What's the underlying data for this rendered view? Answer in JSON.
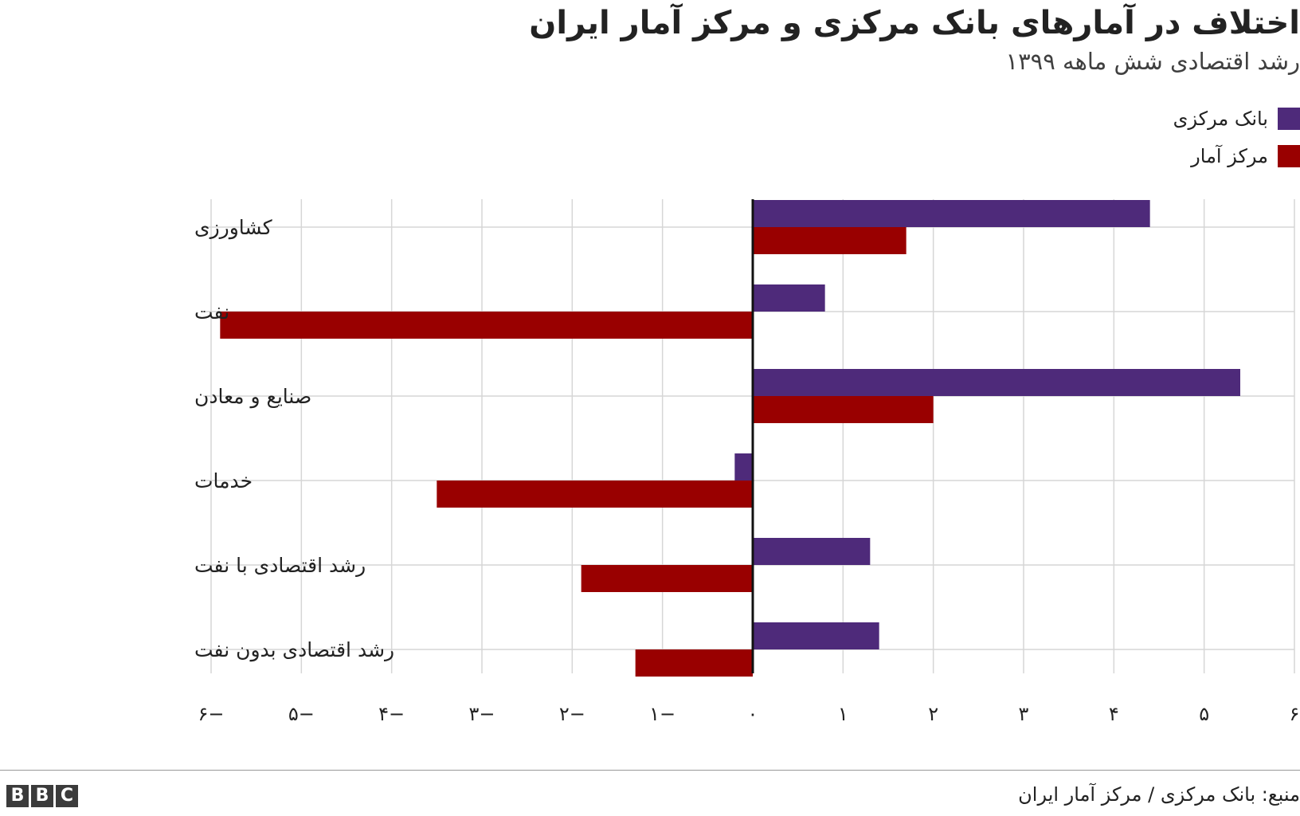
{
  "chart_data": {
    "type": "bar",
    "orientation": "horizontal",
    "title": "اختلاف در آمارهای بانک مرکزی و مرکز آمار ایران",
    "subtitle": "رشد اقتصادی شش ماهه ۱۳۹۹",
    "categories": [
      "کشاورزی",
      "نفت",
      "صنایع و معادن",
      "خدمات",
      "رشد اقتصادی با نفت",
      "رشد اقتصادی بدون نفت"
    ],
    "series": [
      {
        "name": "بانک مرکزی",
        "color": "#4e2a7a",
        "values": [
          4.4,
          0.8,
          5.4,
          -0.2,
          1.3,
          1.4
        ]
      },
      {
        "name": "مرکز آمار",
        "color": "#990000",
        "values": [
          1.7,
          -5.9,
          2.0,
          -3.5,
          -1.9,
          -1.3
        ]
      }
    ],
    "xlim": [
      -6,
      6
    ],
    "ticks": [
      -6,
      -5,
      -4,
      -3,
      -2,
      -1,
      0,
      1,
      2,
      3,
      4,
      5,
      6
    ],
    "tick_labels": [
      "۶−",
      "۵−",
      "۴−",
      "۳−",
      "۲−",
      "۱−",
      "۰",
      "۱",
      "۲",
      "۳",
      "۴",
      "۵",
      "۶"
    ],
    "grid": true,
    "legend_position": "top-right",
    "source": "منبع: بانک مرکزی / مرکز آمار ایران"
  },
  "brand": {
    "logo_letters": [
      "B",
      "B",
      "C"
    ]
  }
}
